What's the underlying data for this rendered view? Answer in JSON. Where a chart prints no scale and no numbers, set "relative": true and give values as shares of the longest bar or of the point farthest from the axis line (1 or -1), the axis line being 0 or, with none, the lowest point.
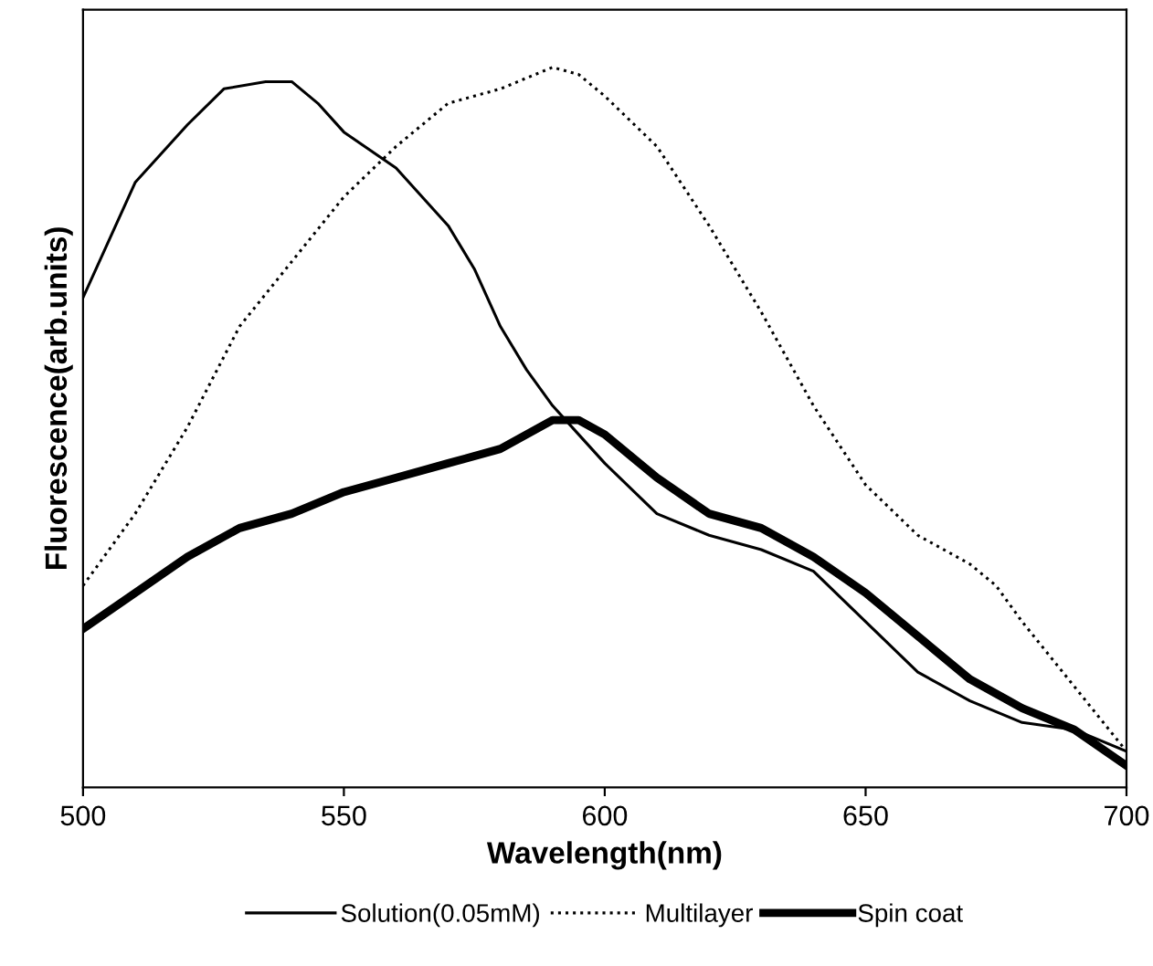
{
  "chart_data": {
    "type": "line",
    "xlabel": "Wavelength(nm)",
    "ylabel": "Fluorescence(arb.units)",
    "relative": true,
    "xlim": [
      500,
      700
    ],
    "xticks": [
      500,
      550,
      600,
      650,
      700
    ],
    "grid": false,
    "legend": "bottom",
    "marker": "none",
    "series": [
      {
        "name": "Solution(0.05mM)",
        "color": "#000000",
        "line_style": "solid",
        "x": [
          500,
          510,
          520,
          527,
          535,
          540,
          545,
          550,
          560,
          570,
          575,
          580,
          585,
          590,
          595,
          600,
          610,
          620,
          630,
          640,
          650,
          660,
          670,
          680,
          690,
          700
        ],
        "values": [
          0.68,
          0.84,
          0.92,
          0.97,
          0.98,
          0.98,
          0.95,
          0.91,
          0.86,
          0.78,
          0.72,
          0.64,
          0.58,
          0.53,
          0.49,
          0.45,
          0.38,
          0.35,
          0.33,
          0.3,
          0.23,
          0.16,
          0.12,
          0.09,
          0.08,
          0.05
        ]
      },
      {
        "name": "Multilayer",
        "color": "#000000",
        "line_style": "dotted",
        "x": [
          500,
          510,
          520,
          530,
          540,
          550,
          560,
          570,
          580,
          590,
          595,
          600,
          610,
          620,
          630,
          640,
          650,
          660,
          670,
          675,
          680,
          690,
          700
        ],
        "values": [
          0.28,
          0.38,
          0.5,
          0.64,
          0.73,
          0.82,
          0.89,
          0.95,
          0.97,
          1.0,
          0.99,
          0.96,
          0.89,
          0.78,
          0.66,
          0.53,
          0.42,
          0.35,
          0.31,
          0.28,
          0.23,
          0.14,
          0.05
        ]
      },
      {
        "name": "Spin coat",
        "color": "#000000",
        "line_style": "solid",
        "x": [
          500,
          510,
          520,
          530,
          540,
          550,
          560,
          570,
          580,
          590,
          595,
          600,
          610,
          620,
          630,
          640,
          650,
          660,
          670,
          680,
          690,
          700
        ],
        "values": [
          0.22,
          0.27,
          0.32,
          0.36,
          0.38,
          0.41,
          0.43,
          0.45,
          0.47,
          0.51,
          0.51,
          0.49,
          0.43,
          0.38,
          0.36,
          0.32,
          0.27,
          0.21,
          0.15,
          0.11,
          0.08,
          0.03
        ]
      }
    ]
  }
}
